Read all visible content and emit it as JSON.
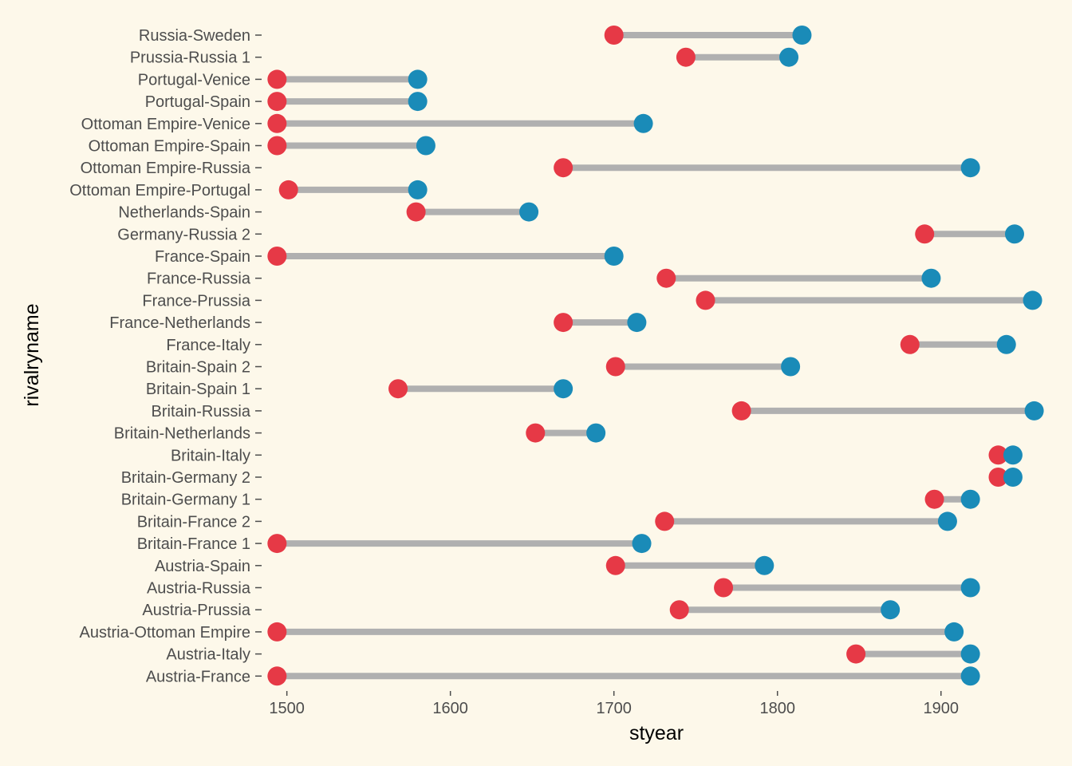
{
  "chart_data": {
    "type": "dumbbell",
    "xlabel": "styear",
    "ylabel": "rivalryname",
    "xlim": [
      1487,
      1965
    ],
    "xticks": [
      1500,
      1600,
      1700,
      1800,
      1900
    ],
    "grid": false,
    "start_color": "#e63946",
    "end_color": "#1a8bb8",
    "segment_color": "#b0b0b0",
    "background": "#fdf8ea",
    "categories": [
      "Russia-Sweden",
      "Prussia-Russia 1",
      "Portugal-Venice",
      "Portugal-Spain",
      "Ottoman Empire-Venice",
      "Ottoman Empire-Spain",
      "Ottoman Empire-Russia",
      "Ottoman Empire-Portugal",
      "Netherlands-Spain",
      "Germany-Russia 2",
      "France-Spain",
      "France-Russia",
      "France-Prussia",
      "France-Netherlands",
      "France-Italy",
      "Britain-Spain 2",
      "Britain-Spain 1",
      "Britain-Russia",
      "Britain-Netherlands",
      "Britain-Italy",
      "Britain-Germany 2",
      "Britain-Germany 1",
      "Britain-France 2",
      "Britain-France 1",
      "Austria-Spain",
      "Austria-Russia",
      "Austria-Prussia",
      "Austria-Ottoman Empire",
      "Austria-Italy",
      "Austria-France"
    ],
    "start": [
      1700,
      1744,
      1494,
      1494,
      1494,
      1494,
      1669,
      1501,
      1579,
      1890,
      1494,
      1732,
      1756,
      1669,
      1881,
      1701,
      1568,
      1778,
      1652,
      1935,
      1935,
      1896,
      1731,
      1494,
      1701,
      1767,
      1740,
      1494,
      1848,
      1494
    ],
    "end": [
      1815,
      1807,
      1580,
      1580,
      1718,
      1585,
      1918,
      1580,
      1648,
      1945,
      1700,
      1894,
      1956,
      1714,
      1940,
      1808,
      1669,
      1957,
      1689,
      1944,
      1944,
      1918,
      1904,
      1717,
      1792,
      1918,
      1869,
      1908,
      1918,
      1918
    ]
  }
}
